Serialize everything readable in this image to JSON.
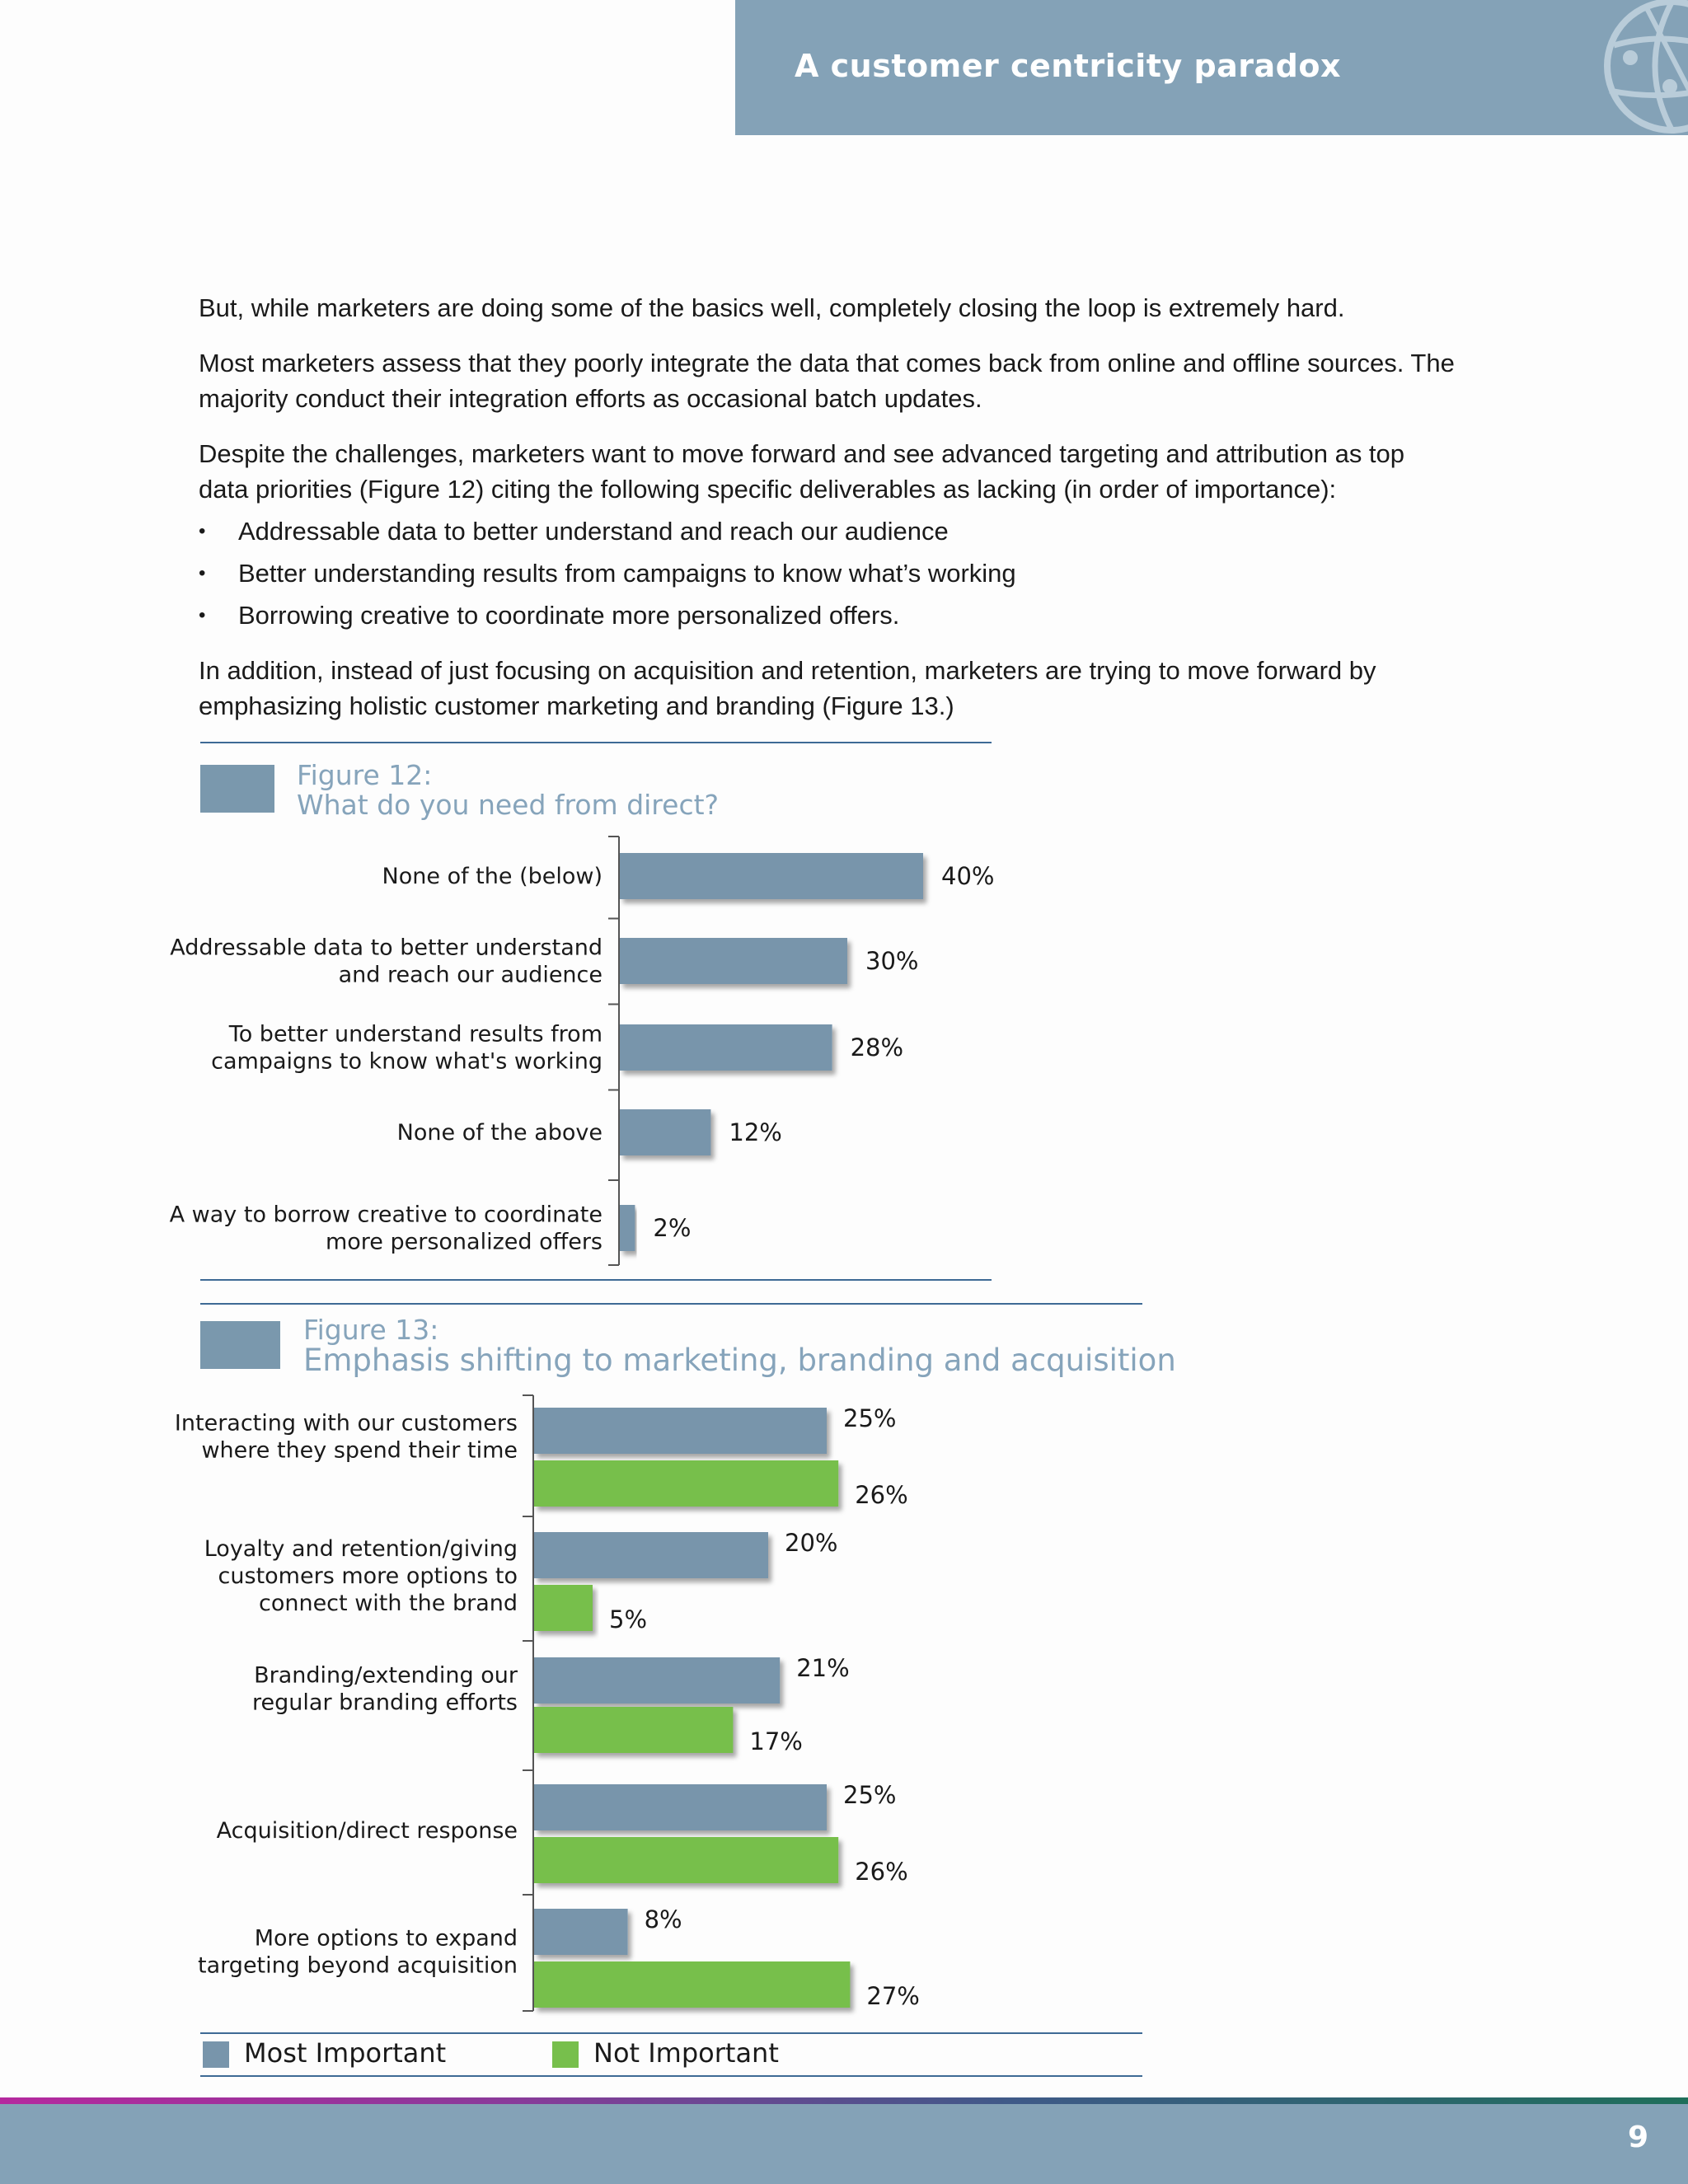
{
  "header": {
    "title": "A customer centricity paradox",
    "icon": "globe-icon"
  },
  "body": {
    "para1": "But, while marketers are doing some of the basics well, completely closing the loop is extremely hard.",
    "para2": "Most marketers assess that they poorly integrate the data that comes back from online and offline sources. The majority conduct their integration efforts as occasional batch updates.",
    "para3": "Despite the challenges, marketers want to move forward and see advanced targeting and attribution as top data priorities (Figure 12) citing the following specific deliverables as lacking (in order of importance):",
    "bullets": [
      "Addressable data to better understand and reach our audience",
      "Better understanding results from campaigns to know what’s working",
      "Borrowing creative to coordinate more personalized offers."
    ],
    "para4": "In addition, instead of just focusing on acquisition and retention, marketers are trying to move forward by emphasizing holistic customer marketing and branding (Figure 13.)"
  },
  "figure12": {
    "number": "Figure 12:",
    "title": "What do you need from direct?"
  },
  "figure13": {
    "number": "Figure 13:",
    "title": "Emphasis shifting to marketing, branding and acquisition"
  },
  "legend": {
    "most": "Most Important",
    "not": "Not Important"
  },
  "colors": {
    "header": "#84a2b7",
    "bar_blue": "#7895ab",
    "bar_green": "#77bf4c",
    "rule": "#3e6a95"
  },
  "chart_data": [
    {
      "type": "bar",
      "orientation": "horizontal",
      "categories": [
        [
          "None of the (below)"
        ],
        [
          "Addressable data to better understand",
          "and reach our audience"
        ],
        [
          "To better understand results from",
          "campaigns to know what's working"
        ],
        [
          "None of the above"
        ],
        [
          "A way to borrow creative to coordinate",
          "more personalized offers"
        ]
      ],
      "values": [
        40,
        30,
        28,
        12,
        2
      ],
      "value_labels": [
        "40%",
        "30%",
        "28%",
        "12%",
        "2%"
      ]
    },
    {
      "type": "bar",
      "orientation": "horizontal",
      "categories": [
        [
          "Interacting with our customers",
          "where they spend their time"
        ],
        [
          "Loyalty and retention/giving",
          "customers more options to",
          "connect with the brand"
        ],
        [
          "Branding/extending our",
          "regular branding efforts"
        ],
        [
          "Acquisition/direct response"
        ],
        [
          "More options to expand",
          "targeting beyond acquisition"
        ]
      ],
      "series": [
        {
          "name": "Most Important",
          "values": [
            25,
            20,
            21,
            25,
            8
          ],
          "value_labels": [
            "25%",
            "20%",
            "21%",
            "25%",
            "8%"
          ]
        },
        {
          "name": "Not Important",
          "values": [
            26,
            5,
            17,
            26,
            27
          ],
          "value_labels": [
            "26%",
            "5%",
            "17%",
            "26%",
            "27%"
          ]
        }
      ]
    }
  ],
  "footer": {
    "page_number": "9"
  }
}
